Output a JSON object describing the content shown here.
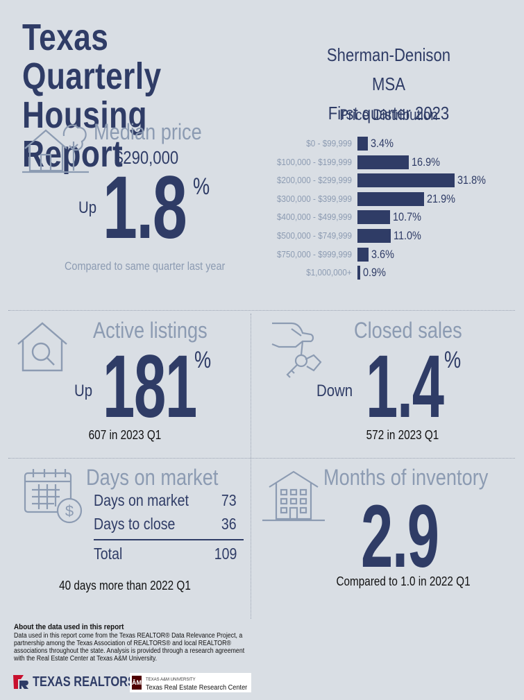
{
  "header": {
    "title_line1": "Texas Quarterly",
    "title_line2": "Housing Report",
    "region": "Sherman-Denison MSA",
    "period": "First quarter 2023"
  },
  "median_price": {
    "label": "Median price",
    "value": "$290,000",
    "direction": "Up",
    "change": "1.8",
    "percent_symbol": "%",
    "comparison": "Compared to same quarter last year"
  },
  "chart_data": {
    "type": "bar",
    "orientation": "horizontal",
    "title": "Price Distribution",
    "categories": [
      "$0 - $99,999",
      "$100,000 - $199,999",
      "$200,000 - $299,999",
      "$300,000 - $399,999",
      "$400,000 - $499,999",
      "$500,000 - $749,999",
      "$750,000 - $999,999",
      "$1,000,000+"
    ],
    "values": [
      3.4,
      16.9,
      31.8,
      21.9,
      10.7,
      11.0,
      3.6,
      0.9
    ],
    "value_labels": [
      "3.4%",
      "16.9%",
      "31.8%",
      "21.9%",
      "10.7%",
      "11.0%",
      "3.6%",
      "0.9%"
    ],
    "bar_color": "#2f3c66"
  },
  "active_listings": {
    "label": "Active listings",
    "direction": "Up",
    "change": "181",
    "percent_symbol": "%",
    "detail": "607 in 2023 Q1"
  },
  "closed_sales": {
    "label": "Closed sales",
    "direction": "Down",
    "change": "1.4",
    "percent_symbol": "%",
    "detail": "572 in 2023 Q1"
  },
  "days_on_market": {
    "label": "Days on market",
    "rows": [
      {
        "label": "Days on market",
        "value": "73"
      },
      {
        "label": "Days to close",
        "value": "36"
      }
    ],
    "total_label": "Total",
    "total_value": "109",
    "detail": "40 days more than 2022 Q1"
  },
  "months_inventory": {
    "label": "Months of inventory",
    "value": "2.9",
    "detail": "Compared to 1.0 in 2022 Q1"
  },
  "about": {
    "heading": "About the data used in this report",
    "text": "Data used in this report come from the Texas REALTOR® Data Relevance Project, a partnership among the Texas Association of REALTORS® and local REALTOR® associations throughout the state. Analysis is provided through a research agreement with the Real Estate Center at Texas A&M University."
  },
  "logos": {
    "texas_realtors": "TEXAS REALTORS",
    "tam_small": "TEXAS A&M UNIVERSITY",
    "tam_name": "Texas Real Estate Research Center",
    "tam_mark": "ĀM"
  },
  "colors": {
    "background": "#d9dee4",
    "navy": "#2f3c66",
    "muted": "#8c9bb2",
    "tam_maroon": "#500000",
    "tr_red": "#c8102e"
  }
}
